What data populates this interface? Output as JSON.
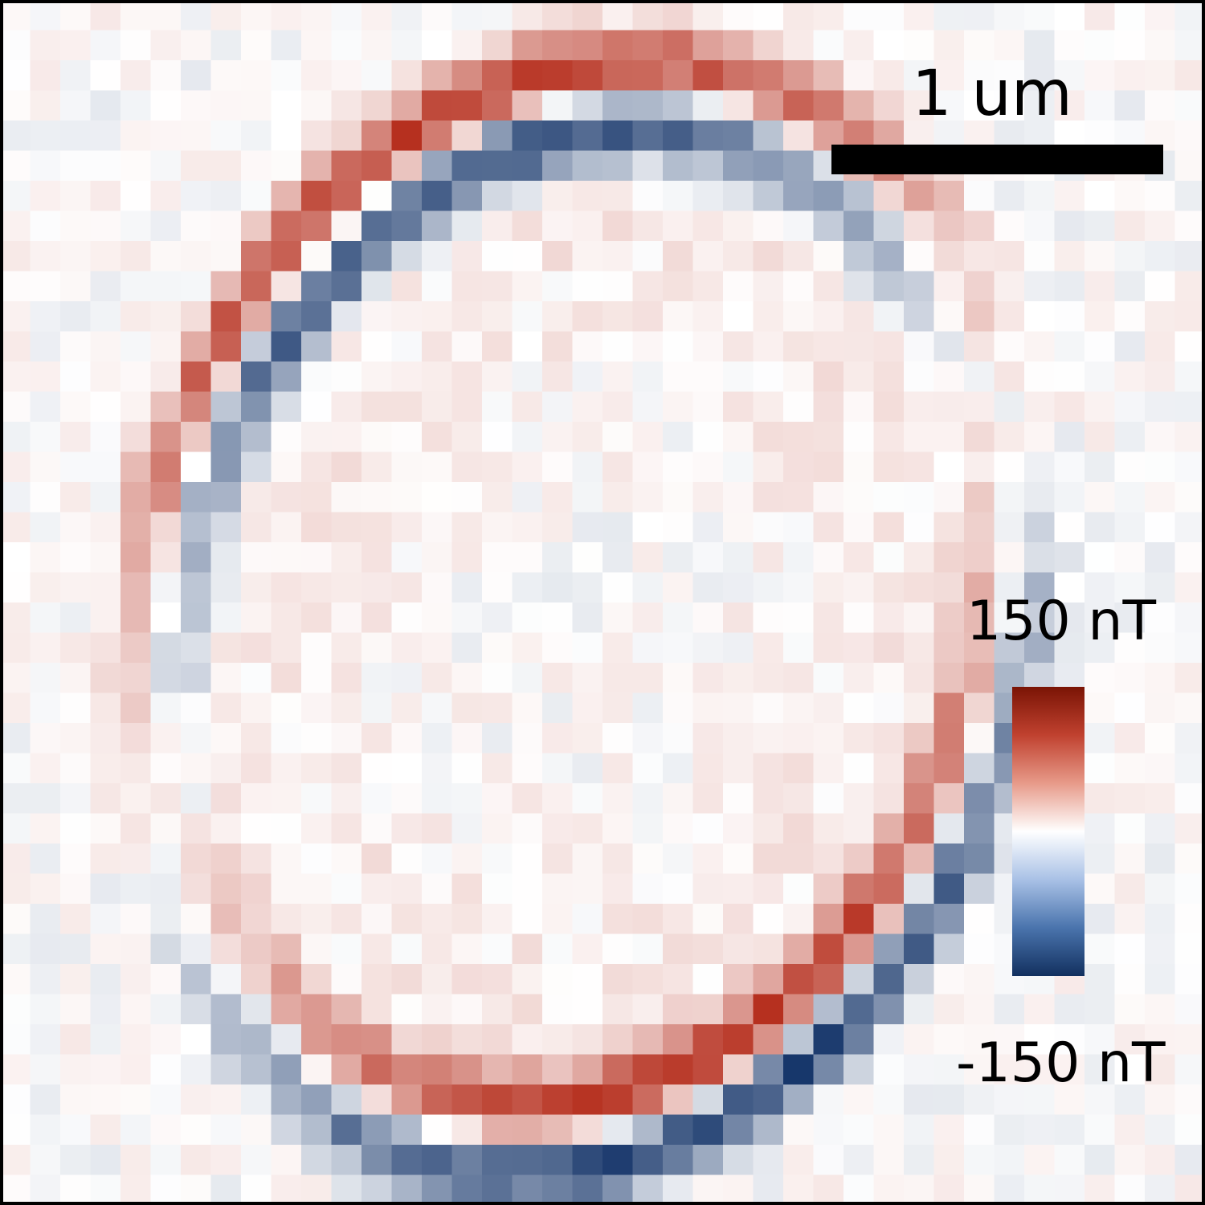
{
  "image": {
    "description_kind": "magnetic field map (heatmap)",
    "colormap": [
      "#7a1405",
      "#c0412f",
      "#e79a89",
      "#ffffff",
      "#a9c1e6",
      "#4a74ad",
      "#12305f"
    ],
    "colors": {
      "positive": "#b6301f",
      "negative": "#1f4a86",
      "neutral": "#ffffff",
      "border": "#000000",
      "text": "#000000"
    }
  },
  "scalebar": {
    "label": "1 um"
  },
  "colorbar": {
    "max_label": "150 nT",
    "min_label": "-150 nT",
    "vmax": 150,
    "vmin": -150
  }
}
